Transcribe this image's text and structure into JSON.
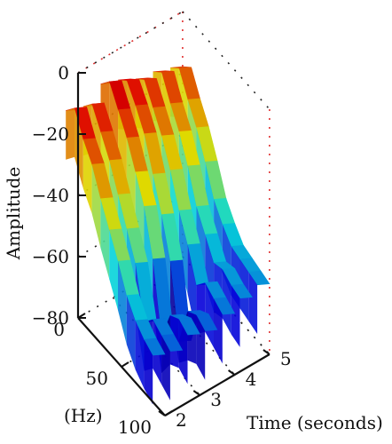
{
  "chart_data": {
    "type": "surface",
    "title": "",
    "zlabel": "Amplitude",
    "xlabel": "(Hz)",
    "ylabel": "Time (seconds)",
    "z_ticks": [
      0,
      -20,
      -40,
      -60,
      -80
    ],
    "x_ticks": [
      0,
      50,
      100
    ],
    "y_ticks": [
      2,
      3,
      4,
      5
    ],
    "zlim": [
      -80,
      0
    ],
    "xlim": [
      0,
      100
    ],
    "ylim": [
      2,
      5
    ],
    "colormap": "jet",
    "grid": true,
    "series": [
      {
        "time": 2.0,
        "amplitude_db": [
          -12,
          -8,
          -15,
          -20,
          -28,
          -35,
          -42,
          -50,
          -55,
          -58,
          -60
        ]
      },
      {
        "time": 2.5,
        "amplitude_db": [
          -14,
          -10,
          -16,
          -22,
          -30,
          -38,
          -46,
          -62,
          -58,
          -60,
          -62
        ]
      },
      {
        "time": 3.0,
        "amplitude_db": [
          -10,
          -6,
          -12,
          -18,
          -26,
          -34,
          -48,
          -70,
          -60,
          -58,
          -60
        ]
      },
      {
        "time": 3.5,
        "amplitude_db": [
          -12,
          -9,
          -14,
          -20,
          -30,
          -40,
          -52,
          -75,
          -62,
          -60,
          -62
        ]
      },
      {
        "time": 4.0,
        "amplitude_db": [
          -15,
          -12,
          -18,
          -24,
          -32,
          -42,
          -50,
          -60,
          -56,
          -58,
          -60
        ]
      },
      {
        "time": 4.5,
        "amplitude_db": [
          -16,
          -13,
          -20,
          -26,
          -34,
          -44,
          -50,
          -56,
          -55,
          -57,
          -58
        ]
      },
      {
        "time": 5.0,
        "amplitude_db": [
          -18,
          -15,
          -22,
          -28,
          -36,
          -45,
          -50,
          -54,
          -55,
          -56,
          -57
        ]
      }
    ]
  }
}
